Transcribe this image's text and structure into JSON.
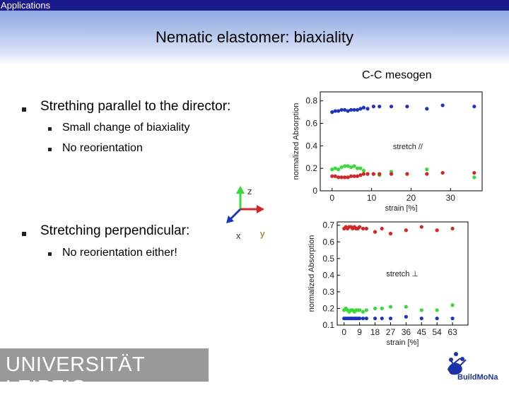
{
  "topbar": {
    "label": "Applications"
  },
  "slide": {
    "title": "Nematic elastomer: biaxiality",
    "mesogen_label": "C-C mesogen",
    "bullets": [
      {
        "text": "Strething parallel to the director:",
        "sub": [
          "Small change of biaxiality",
          "No reorientation"
        ]
      },
      {
        "text": "Stretching perpendicular:",
        "sub": [
          "No reorientation either!"
        ]
      }
    ],
    "axes_diagram": {
      "z": "z",
      "x": "x",
      "y": "y"
    }
  },
  "footer": {
    "university": "UNIVERSITÄT LEIPZIG",
    "logo_text": "BuildMoNa"
  },
  "colors": {
    "red": "#dd2222",
    "green": "#33dd33",
    "blue": "#1a33cc",
    "topbar": "#1a1a8c"
  },
  "chart_data": [
    {
      "type": "scatter",
      "annotation": "stretch //",
      "xlabel": "strain [%]",
      "ylabel": "normalized Absorption",
      "xlim": [
        -3,
        38
      ],
      "ylim": [
        0,
        0.88
      ],
      "xticks": [
        "0",
        "10",
        "20",
        "30"
      ],
      "yticks": [
        "0",
        "0.2",
        "0.4",
        "0.6",
        "0.8"
      ],
      "series": [
        {
          "color": "#1a33cc",
          "x": [
            0,
            0.8,
            1.6,
            2.4,
            3.2,
            4,
            4.8,
            5.6,
            6.4,
            7.2,
            8,
            9,
            10.5,
            12,
            15,
            19,
            24,
            28,
            36
          ],
          "y": [
            0.7,
            0.71,
            0.71,
            0.72,
            0.72,
            0.71,
            0.72,
            0.72,
            0.72,
            0.73,
            0.74,
            0.73,
            0.75,
            0.75,
            0.75,
            0.75,
            0.73,
            0.76,
            0.75
          ]
        },
        {
          "color": "#33dd33",
          "x": [
            0,
            0.8,
            1.6,
            2.4,
            3.2,
            4,
            4.8,
            5.6,
            6.4,
            7.2,
            8,
            9,
            10.5,
            12,
            15,
            19,
            24,
            28,
            36
          ],
          "y": [
            0.19,
            0.2,
            0.19,
            0.21,
            0.22,
            0.22,
            0.21,
            0.22,
            0.2,
            0.2,
            0.18,
            0.15,
            0.15,
            0.14,
            0.17,
            0.15,
            0.19,
            0.16,
            0.12
          ]
        },
        {
          "color": "#dd2222",
          "x": [
            0,
            0.8,
            1.6,
            2.4,
            3.2,
            4,
            4.8,
            5.6,
            6.4,
            7.2,
            8,
            9,
            10.5,
            12,
            15,
            19,
            24,
            28,
            36
          ],
          "y": [
            0.13,
            0.13,
            0.12,
            0.12,
            0.12,
            0.12,
            0.13,
            0.13,
            0.13,
            0.14,
            0.15,
            0.15,
            0.15,
            0.15,
            0.15,
            0.15,
            0.15,
            0.16,
            0.16
          ]
        }
      ]
    },
    {
      "type": "scatter",
      "annotation": "stretch ⊥",
      "xlabel": "strain [%]",
      "ylabel": "normalized Absorption",
      "xlim": [
        -4,
        72
      ],
      "ylim": [
        0.1,
        0.72
      ],
      "xticks": [
        "0",
        "9",
        "18",
        "27",
        "36",
        "45",
        "54",
        "63"
      ],
      "yticks": [
        "0.1",
        "0.2",
        "0.3",
        "0.4",
        "0.5",
        "0.6",
        "0.7"
      ],
      "series": [
        {
          "color": "#dd2222",
          "x": [
            0,
            1,
            2,
            3,
            4,
            5,
            6,
            7,
            8,
            9,
            11,
            13,
            18,
            22,
            27,
            36,
            45,
            54,
            63
          ],
          "y": [
            0.68,
            0.69,
            0.68,
            0.69,
            0.69,
            0.68,
            0.69,
            0.68,
            0.68,
            0.69,
            0.68,
            0.68,
            0.66,
            0.68,
            0.65,
            0.67,
            0.69,
            0.67,
            0.68
          ]
        },
        {
          "color": "#33dd33",
          "x": [
            0,
            1,
            2,
            3,
            4,
            5,
            6,
            7,
            8,
            9,
            11,
            13,
            18,
            22,
            27,
            36,
            45,
            54,
            63
          ],
          "y": [
            0.19,
            0.2,
            0.19,
            0.18,
            0.19,
            0.19,
            0.18,
            0.19,
            0.19,
            0.19,
            0.18,
            0.19,
            0.2,
            0.2,
            0.21,
            0.21,
            0.19,
            0.19,
            0.22
          ]
        },
        {
          "color": "#1a33cc",
          "x": [
            0,
            1,
            2,
            3,
            4,
            5,
            6,
            7,
            8,
            9,
            11,
            13,
            18,
            22,
            27,
            36,
            45,
            54,
            63
          ],
          "y": [
            0.14,
            0.14,
            0.14,
            0.14,
            0.14,
            0.14,
            0.14,
            0.14,
            0.14,
            0.14,
            0.14,
            0.14,
            0.14,
            0.14,
            0.14,
            0.15,
            0.14,
            0.14,
            0.14
          ]
        }
      ]
    }
  ]
}
